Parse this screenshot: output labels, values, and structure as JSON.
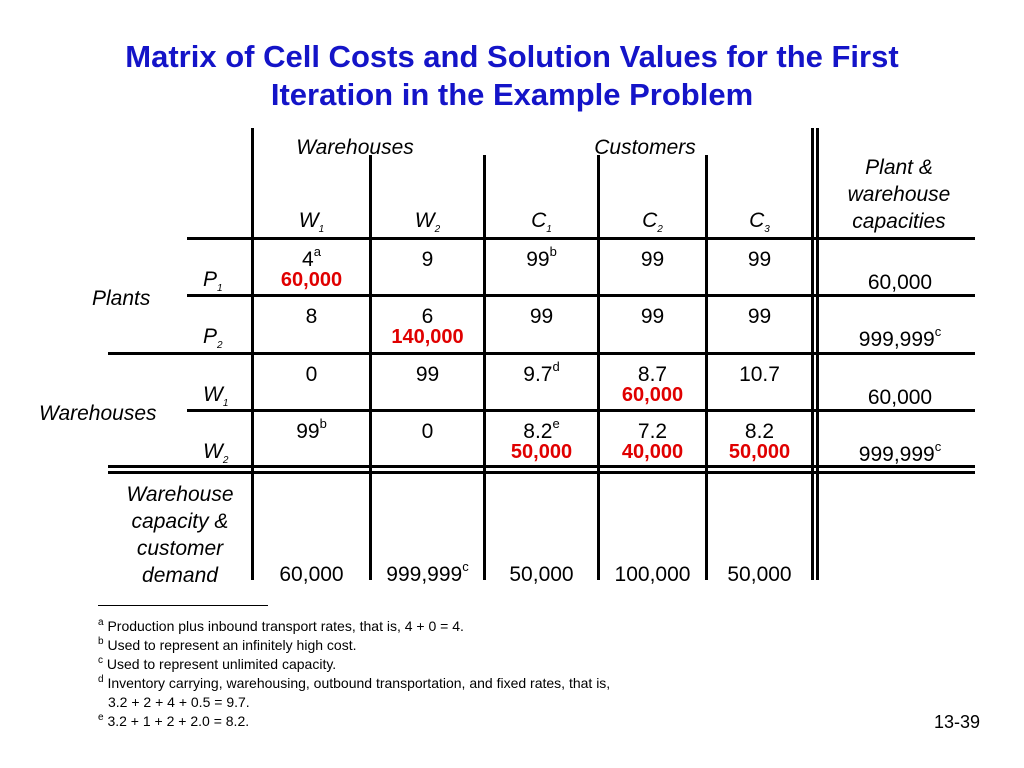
{
  "title_line1": "Matrix of Cell Costs and Solution Values for the First",
  "title_line2": "Iteration in the Example Problem",
  "headers": {
    "warehouses": "Warehouses",
    "customers": "Customers",
    "plant_cap_1": "Plant &",
    "plant_cap_2": "warehouse",
    "plant_cap_3": "capacities",
    "cols": [
      {
        "letter": "W",
        "sub": "1"
      },
      {
        "letter": "W",
        "sub": "2"
      },
      {
        "letter": "C",
        "sub": "1"
      },
      {
        "letter": "C",
        "sub": "2"
      },
      {
        "letter": "C",
        "sub": "3"
      }
    ]
  },
  "groups": {
    "plants": "Plants",
    "warehouses": "Warehouses"
  },
  "rows": [
    {
      "letter": "P",
      "sub": "1",
      "costs": [
        {
          "v": "4",
          "sup": "a"
        },
        {
          "v": "9",
          "sup": ""
        },
        {
          "v": "99",
          "sup": "b"
        },
        {
          "v": "99",
          "sup": ""
        },
        {
          "v": "99",
          "sup": ""
        }
      ],
      "solutions": [
        "60,000",
        "",
        "",
        "",
        ""
      ],
      "capacity": {
        "v": "60,000",
        "sup": ""
      }
    },
    {
      "letter": "P",
      "sub": "2",
      "costs": [
        {
          "v": "8",
          "sup": ""
        },
        {
          "v": "6",
          "sup": ""
        },
        {
          "v": "99",
          "sup": ""
        },
        {
          "v": "99",
          "sup": ""
        },
        {
          "v": "99",
          "sup": ""
        }
      ],
      "solutions": [
        "",
        "140,000",
        "",
        "",
        ""
      ],
      "capacity": {
        "v": "999,999",
        "sup": "c"
      }
    },
    {
      "letter": "W",
      "sub": "1",
      "costs": [
        {
          "v": "0",
          "sup": ""
        },
        {
          "v": "99",
          "sup": ""
        },
        {
          "v": "9.7",
          "sup": "d"
        },
        {
          "v": "8.7",
          "sup": ""
        },
        {
          "v": "10.7",
          "sup": ""
        }
      ],
      "solutions": [
        "",
        "",
        "",
        "60,000",
        ""
      ],
      "capacity": {
        "v": "60,000",
        "sup": ""
      }
    },
    {
      "letter": "W",
      "sub": "2",
      "costs": [
        {
          "v": "99",
          "sup": "b"
        },
        {
          "v": "0",
          "sup": ""
        },
        {
          "v": "8.2",
          "sup": "e"
        },
        {
          "v": "7.2",
          "sup": ""
        },
        {
          "v": "8.2",
          "sup": ""
        }
      ],
      "solutions": [
        "",
        "",
        "50,000",
        "40,000",
        "50,000"
      ],
      "capacity": {
        "v": "999,999",
        "sup": "c"
      }
    }
  ],
  "demand_label": [
    "Warehouse",
    "capacity &",
    "customer",
    "demand"
  ],
  "demand": [
    {
      "v": "60,000",
      "sup": ""
    },
    {
      "v": "999,999",
      "sup": "c"
    },
    {
      "v": "50,000",
      "sup": ""
    },
    {
      "v": "100,000",
      "sup": ""
    },
    {
      "v": "50,000",
      "sup": ""
    }
  ],
  "footnotes": [
    {
      "mark": "a",
      "text": "Production plus inbound transport rates, that is, 4 + 0 = 4."
    },
    {
      "mark": "b",
      "text": "Used to represent an infinitely high cost."
    },
    {
      "mark": "c",
      "text": "Used to represent unlimited capacity."
    },
    {
      "mark": "d",
      "text": "Inventory carrying, warehousing, outbound transportation, and fixed rates, that is,"
    },
    {
      "mark": "",
      "text": "3.2 + 2 + 4 + 0.5 = 9.7."
    },
    {
      "mark": "e",
      "text": "3.2 + 1 + 2 + 2.0 = 8.2."
    }
  ],
  "page_number": "13-39"
}
